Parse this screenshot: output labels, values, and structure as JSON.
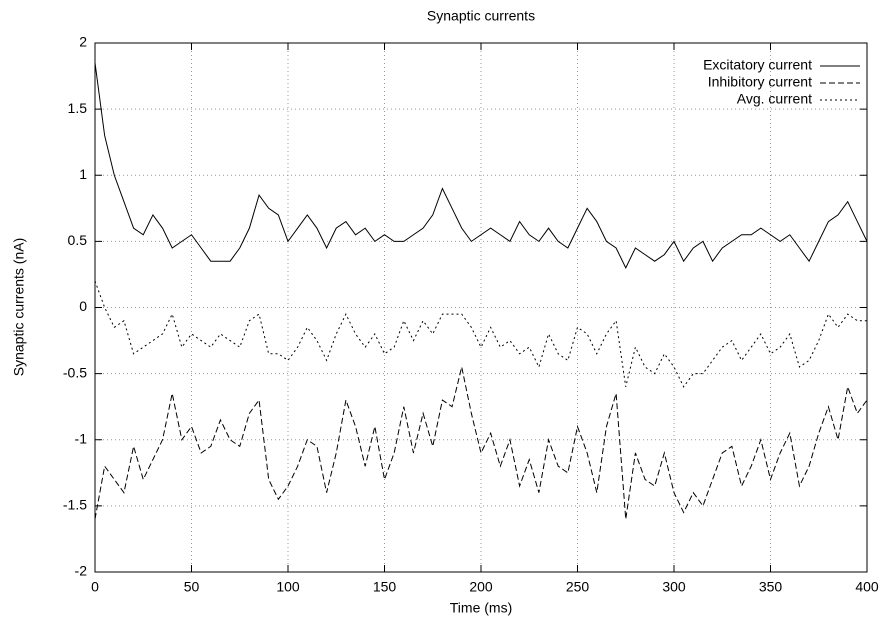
{
  "chart_data": {
    "type": "line",
    "title": "Synaptic currents",
    "x_label": "Time (ms)",
    "y_label": "Synaptic currents (nA)",
    "x": [
      0,
      5,
      10,
      15,
      20,
      25,
      30,
      35,
      40,
      45,
      50,
      55,
      60,
      65,
      70,
      75,
      80,
      85,
      90,
      95,
      100,
      105,
      110,
      115,
      120,
      125,
      130,
      135,
      140,
      145,
      150,
      155,
      160,
      165,
      170,
      175,
      180,
      185,
      190,
      195,
      200,
      205,
      210,
      215,
      220,
      225,
      230,
      235,
      240,
      245,
      250,
      255,
      260,
      265,
      270,
      275,
      280,
      285,
      290,
      295,
      300,
      305,
      310,
      315,
      320,
      325,
      330,
      335,
      340,
      345,
      350,
      355,
      360,
      365,
      370,
      375,
      380,
      385,
      390,
      395,
      400
    ],
    "series": [
      {
        "name": "Excitatory current",
        "color": "#000000",
        "style": "solid",
        "values": [
          1.85,
          1.3,
          1.0,
          0.8,
          0.6,
          0.55,
          0.7,
          0.6,
          0.45,
          0.5,
          0.55,
          0.45,
          0.35,
          0.35,
          0.35,
          0.45,
          0.6,
          0.85,
          0.75,
          0.7,
          0.5,
          0.6,
          0.7,
          0.6,
          0.45,
          0.6,
          0.65,
          0.55,
          0.6,
          0.5,
          0.55,
          0.5,
          0.5,
          0.55,
          0.6,
          0.7,
          0.9,
          0.75,
          0.6,
          0.5,
          0.55,
          0.6,
          0.55,
          0.5,
          0.65,
          0.55,
          0.5,
          0.6,
          0.5,
          0.45,
          0.6,
          0.75,
          0.65,
          0.5,
          0.45,
          0.3,
          0.45,
          0.4,
          0.35,
          0.4,
          0.5,
          0.35,
          0.45,
          0.5,
          0.35,
          0.45,
          0.5,
          0.55,
          0.55,
          0.6,
          0.55,
          0.5,
          0.55,
          0.45,
          0.35,
          0.5,
          0.65,
          0.7,
          0.8,
          0.65,
          0.5
        ]
      },
      {
        "name": "Inhibitory current",
        "color": "#000000",
        "style": "dashed",
        "values": [
          -1.6,
          -1.2,
          -1.3,
          -1.4,
          -1.05,
          -1.3,
          -1.15,
          -1.0,
          -0.65,
          -1.0,
          -0.9,
          -1.1,
          -1.05,
          -0.85,
          -1.0,
          -1.05,
          -0.8,
          -0.7,
          -1.3,
          -1.45,
          -1.35,
          -1.2,
          -1.0,
          -1.05,
          -1.4,
          -1.1,
          -0.7,
          -0.9,
          -1.2,
          -0.9,
          -1.3,
          -1.1,
          -0.75,
          -1.1,
          -0.8,
          -1.05,
          -0.7,
          -0.75,
          -0.45,
          -0.8,
          -1.1,
          -0.95,
          -1.2,
          -1.0,
          -1.35,
          -1.15,
          -1.4,
          -1.0,
          -1.2,
          -1.25,
          -0.9,
          -1.1,
          -1.4,
          -0.9,
          -0.65,
          -1.6,
          -1.1,
          -1.3,
          -1.35,
          -1.1,
          -1.4,
          -1.55,
          -1.4,
          -1.5,
          -1.3,
          -1.1,
          -1.05,
          -1.35,
          -1.2,
          -1.0,
          -1.3,
          -1.1,
          -0.95,
          -1.35,
          -1.2,
          -0.95,
          -0.75,
          -1.0,
          -0.6,
          -0.8,
          -0.7
        ]
      },
      {
        "name": "Avg. current",
        "color": "#000000",
        "style": "dotted",
        "values": [
          0.2,
          0.0,
          -0.15,
          -0.1,
          -0.35,
          -0.3,
          -0.25,
          -0.2,
          -0.05,
          -0.3,
          -0.2,
          -0.25,
          -0.3,
          -0.2,
          -0.25,
          -0.3,
          -0.1,
          -0.05,
          -0.35,
          -0.35,
          -0.4,
          -0.3,
          -0.15,
          -0.25,
          -0.4,
          -0.2,
          -0.05,
          -0.2,
          -0.3,
          -0.2,
          -0.35,
          -0.3,
          -0.1,
          -0.25,
          -0.1,
          -0.2,
          -0.05,
          -0.05,
          -0.05,
          -0.15,
          -0.3,
          -0.15,
          -0.3,
          -0.25,
          -0.35,
          -0.3,
          -0.45,
          -0.2,
          -0.35,
          -0.4,
          -0.15,
          -0.2,
          -0.35,
          -0.2,
          -0.1,
          -0.6,
          -0.3,
          -0.45,
          -0.5,
          -0.35,
          -0.45,
          -0.6,
          -0.5,
          -0.5,
          -0.4,
          -0.3,
          -0.25,
          -0.4,
          -0.3,
          -0.2,
          -0.35,
          -0.3,
          -0.2,
          -0.45,
          -0.4,
          -0.25,
          -0.05,
          -0.15,
          -0.05,
          -0.1,
          -0.1
        ]
      }
    ],
    "xlim": [
      0,
      400
    ],
    "xticks": [
      0,
      50,
      100,
      150,
      200,
      250,
      300,
      350,
      400
    ],
    "ylim": [
      -2,
      2
    ],
    "yticks": [
      -2,
      -1.5,
      -1,
      -0.5,
      0,
      0.5,
      1,
      1.5,
      2
    ],
    "grid": true,
    "legend": "top-right"
  }
}
